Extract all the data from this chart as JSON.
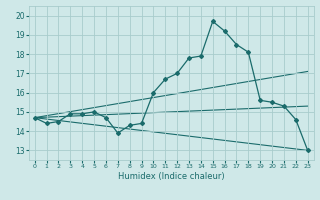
{
  "title": "",
  "xlabel": "Humidex (Indice chaleur)",
  "bg_color": "#cfe8e8",
  "grid_color": "#a8cccc",
  "line_color": "#1a6b6b",
  "xlim": [
    -0.5,
    23.5
  ],
  "ylim": [
    12.5,
    20.5
  ],
  "yticks": [
    13,
    14,
    15,
    16,
    17,
    18,
    19,
    20
  ],
  "xticks": [
    0,
    1,
    2,
    3,
    4,
    5,
    6,
    7,
    8,
    9,
    10,
    11,
    12,
    13,
    14,
    15,
    16,
    17,
    18,
    19,
    20,
    21,
    22,
    23
  ],
  "line1_x": [
    0,
    1,
    2,
    3,
    4,
    5,
    6,
    7,
    8,
    9,
    10,
    11,
    12,
    13,
    14,
    15,
    16,
    17,
    18,
    19,
    20,
    21,
    22,
    23
  ],
  "line1_y": [
    14.7,
    14.4,
    14.5,
    14.9,
    14.9,
    15.0,
    14.7,
    13.9,
    14.3,
    14.4,
    16.0,
    16.7,
    17.0,
    17.8,
    17.9,
    19.7,
    19.2,
    18.5,
    18.1,
    15.6,
    15.5,
    15.3,
    14.6,
    13.0
  ],
  "line2_x": [
    0,
    23
  ],
  "line2_y": [
    14.7,
    17.1
  ],
  "line3_x": [
    0,
    23
  ],
  "line3_y": [
    14.7,
    13.0
  ],
  "line4_x": [
    0,
    23
  ],
  "line4_y": [
    14.7,
    15.3
  ]
}
